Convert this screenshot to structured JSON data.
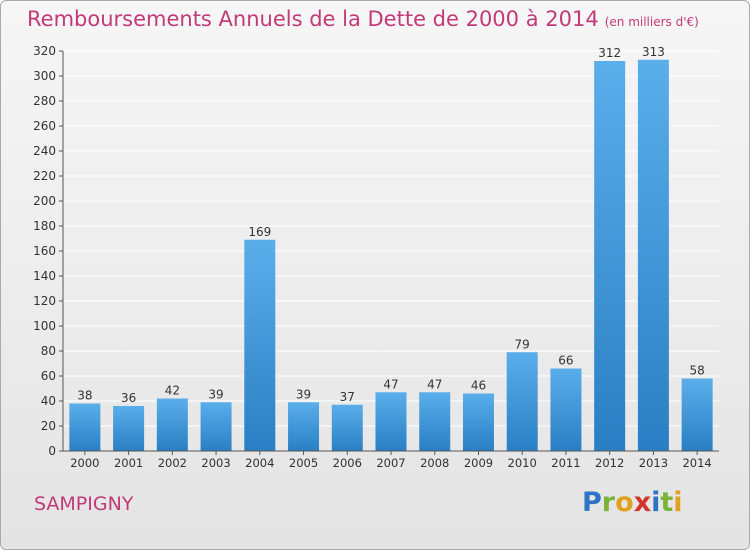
{
  "header": {
    "title": "Remboursements Annuels de la Dette de 2000 à 2014",
    "subtitle": "(en milliers d'€)"
  },
  "footer": {
    "commune": "SAMPIGNY",
    "logo_letters": [
      "P",
      "r",
      "o",
      "x",
      "i",
      "t",
      "i"
    ]
  },
  "colors": {
    "title": "#c23a78",
    "bar_top": "#5aaeea",
    "bar_bottom": "#2a7fc4",
    "grid": "#ffffff"
  },
  "chart_data": {
    "type": "bar",
    "title": "Remboursements Annuels de la Dette de 2000 à 2014",
    "subtitle": "(en milliers d'€)",
    "xlabel": "",
    "ylabel": "",
    "categories": [
      "2000",
      "2001",
      "2002",
      "2003",
      "2004",
      "2005",
      "2006",
      "2007",
      "2008",
      "2009",
      "2010",
      "2011",
      "2012",
      "2013",
      "2014"
    ],
    "values": [
      38,
      36,
      42,
      39,
      169,
      39,
      37,
      47,
      47,
      46,
      79,
      66,
      312,
      313,
      58
    ],
    "ylim": [
      0,
      320
    ],
    "yticks": [
      0,
      20,
      40,
      60,
      80,
      100,
      120,
      140,
      160,
      180,
      200,
      220,
      240,
      260,
      280,
      300,
      320
    ],
    "grid": true,
    "data_labels": true
  }
}
